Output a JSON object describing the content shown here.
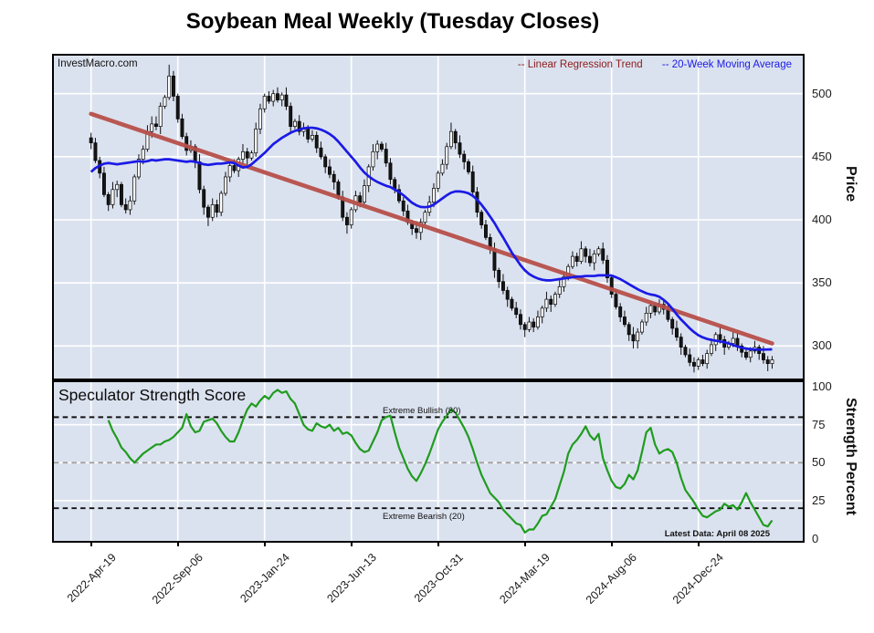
{
  "title": "Soybean Meal Weekly (Tuesday Closes)",
  "watermark": "InvestMacro.com",
  "legend": {
    "regression": "-- Linear Regression Trend",
    "ma": "-- 20-Week Moving Average"
  },
  "price_panel": {
    "ylabel": "Price",
    "yticks": [
      500,
      450,
      400,
      350,
      300
    ]
  },
  "strength_panel": {
    "title": "Speculator Strength Score",
    "ylabel": "Strength Percent",
    "yticks": [
      100,
      75,
      50,
      25,
      0
    ],
    "bullish_label": "Extreme Bullish (80)",
    "bearish_label": "Extreme Bearish (20)",
    "latest_label": "Latest Data: April 08 2025"
  },
  "x_axis": {
    "tick_labels": [
      "2022-Apr-19",
      "2022-Sep-06",
      "2023-Jan-24",
      "2023-Jun-13",
      "2023-Oct-31",
      "2024-Mar-19",
      "2024-Aug-06",
      "2024-Dec-24"
    ],
    "tick_weeks": [
      0,
      20,
      40,
      60,
      80,
      100,
      120,
      140
    ]
  },
  "colors": {
    "plot_bg": "#dbe2ef",
    "grid": "#ffffff",
    "candle_up": "#ffffff",
    "candle_down": "#161616",
    "candle_outline": "#000000",
    "regression": "#b8504a",
    "ma": "#1a1ae6",
    "strength": "#1f9c1f",
    "legend_regression": "#8b1a1a",
    "legend_ma": "#1a1ae6",
    "dash_dark": "#111111",
    "dash_mid": "#999999",
    "text": "#1a1a1a"
  },
  "chart_data": [
    {
      "type": "candlestick",
      "title": "Soybean Meal Weekly (Tuesday Closes)",
      "x_unit": "weeks since 2022-Apr-19",
      "tick_weeks": [
        0,
        20,
        40,
        60,
        80,
        100,
        120,
        140
      ],
      "tick_labels": [
        "2022-Apr-19",
        "2022-Sep-06",
        "2023-Jan-24",
        "2023-Jun-13",
        "2023-Oct-31",
        "2024-Mar-19",
        "2024-Aug-06",
        "2024-Dec-24"
      ],
      "ylabel": "Price",
      "ylim": [
        274,
        531
      ],
      "yticks": [
        500,
        450,
        400,
        350,
        300
      ],
      "grid": true,
      "open_first": 465,
      "close": [
        461,
        447,
        437,
        420,
        412,
        424,
        428,
        412,
        408,
        415,
        434,
        448,
        456,
        470,
        476,
        474,
        490,
        497,
        514,
        498,
        480,
        466,
        455,
        458,
        446,
        424,
        410,
        402,
        412,
        406,
        421,
        434,
        443,
        439,
        448,
        454,
        449,
        453,
        472,
        488,
        498,
        494,
        500,
        495,
        499,
        490,
        474,
        478,
        470,
        473,
        464,
        467,
        457,
        450,
        442,
        436,
        430,
        418,
        402,
        396,
        408,
        419,
        414,
        427,
        442,
        454,
        460,
        456,
        445,
        432,
        424,
        415,
        407,
        398,
        393,
        390,
        398,
        406,
        414,
        425,
        437,
        444,
        458,
        470,
        461,
        452,
        446,
        438,
        422,
        406,
        396,
        386,
        377,
        360,
        351,
        344,
        337,
        330,
        325,
        317,
        313,
        319,
        315,
        323,
        330,
        337,
        333,
        341,
        347,
        355,
        363,
        371,
        367,
        377,
        371,
        366,
        373,
        377,
        368,
        354,
        341,
        331,
        323,
        317,
        309,
        304,
        311,
        319,
        326,
        332,
        327,
        333,
        329,
        321,
        314,
        307,
        299,
        293,
        287,
        284,
        289,
        286,
        294,
        301,
        309,
        305,
        299,
        302,
        306,
        300,
        295,
        291,
        296,
        299,
        294,
        289,
        286,
        289
      ],
      "high": [
        469,
        465,
        450,
        442,
        422,
        430,
        431,
        430,
        417,
        419,
        436,
        452,
        459,
        475,
        482,
        482,
        493,
        499,
        523,
        518,
        500,
        484,
        469,
        463,
        460,
        452,
        427,
        412,
        417,
        416,
        423,
        438,
        446,
        448,
        450,
        460,
        457,
        455,
        477,
        492,
        500,
        502,
        503,
        505,
        501,
        505,
        493,
        480,
        483,
        477,
        475,
        471,
        470,
        462,
        452,
        448,
        439,
        432,
        423,
        406,
        410,
        423,
        422,
        432,
        444,
        460,
        463,
        462,
        461,
        449,
        434,
        428,
        418,
        412,
        400,
        399,
        401,
        408,
        419,
        429,
        439,
        448,
        461,
        477,
        472,
        467,
        455,
        448,
        443,
        426,
        408,
        400,
        389,
        382,
        362,
        357,
        347,
        339,
        335,
        329,
        319,
        323,
        322,
        328,
        332,
        343,
        340,
        343,
        352,
        359,
        365,
        375,
        374,
        383,
        379,
        377,
        376,
        379,
        382,
        372,
        356,
        345,
        334,
        328,
        319,
        315,
        314,
        321,
        331,
        336,
        334,
        337,
        336,
        334,
        323,
        320,
        310,
        301,
        298,
        291,
        291,
        293,
        297,
        306,
        311,
        315,
        308,
        304,
        311,
        310,
        302,
        299,
        299,
        304,
        301,
        300,
        292,
        292
      ],
      "low": [
        456,
        445,
        433,
        418,
        407,
        409,
        418,
        410,
        405,
        404,
        412,
        432,
        444,
        454,
        465,
        471,
        468,
        488,
        495,
        494,
        477,
        464,
        451,
        453,
        441,
        421,
        404,
        395,
        399,
        402,
        403,
        419,
        430,
        437,
        434,
        445,
        443,
        447,
        450,
        468,
        485,
        492,
        490,
        493,
        490,
        487,
        468,
        472,
        467,
        466,
        461,
        462,
        453,
        448,
        437,
        433,
        424,
        416,
        399,
        389,
        393,
        406,
        410,
        412,
        422,
        439,
        448,
        454,
        442,
        428,
        421,
        413,
        403,
        396,
        388,
        385,
        384,
        396,
        403,
        410,
        422,
        435,
        440,
        456,
        456,
        449,
        440,
        436,
        419,
        402,
        393,
        384,
        373,
        354,
        346,
        341,
        331,
        328,
        322,
        313,
        307,
        311,
        311,
        313,
        318,
        327,
        327,
        331,
        338,
        343,
        352,
        361,
        363,
        365,
        366,
        363,
        360,
        371,
        365,
        350,
        338,
        329,
        319,
        315,
        304,
        298,
        298,
        309,
        316,
        322,
        324,
        325,
        325,
        319,
        309,
        304,
        293,
        291,
        284,
        279,
        281,
        284,
        282,
        292,
        296,
        302,
        293,
        297,
        299,
        296,
        291,
        289,
        287,
        294,
        289,
        286,
        280,
        282
      ],
      "series": [
        {
          "name": "20-Week Moving Average",
          "color": "#1a1ae6",
          "values": [
            438,
            441,
            443,
            444.5,
            445,
            444.5,
            444,
            444.5,
            445,
            445.5,
            446,
            446.5,
            446,
            446.5,
            447.5,
            447,
            447.5,
            448,
            448,
            447.5,
            447,
            446.5,
            446,
            446.5,
            446,
            445,
            444,
            443.5,
            444,
            444.5,
            444.5,
            445,
            445.5,
            445,
            443,
            441.5,
            442,
            444,
            447,
            450,
            453,
            456.5,
            460,
            462.5,
            465,
            467,
            469,
            470.5,
            471.5,
            472.5,
            473,
            473,
            472.5,
            471.5,
            470,
            468,
            465.5,
            462,
            458,
            454,
            450,
            446,
            441.5,
            437.5,
            434.5,
            432,
            430,
            428.5,
            427,
            426,
            424,
            422,
            419.5,
            416.5,
            413.5,
            411.5,
            410.2,
            410,
            410.5,
            412,
            414.5,
            417,
            419.5,
            421.5,
            422.5,
            422.5,
            422,
            421,
            419,
            416,
            412,
            407.5,
            402.5,
            397.5,
            391.5,
            386,
            380,
            374,
            369,
            364,
            360,
            357,
            355,
            353.5,
            352.5,
            352,
            352,
            352.5,
            353,
            353.5,
            354,
            354.5,
            355,
            355,
            355.5,
            355.5,
            355.5,
            356,
            356,
            356,
            355.8,
            354.5,
            353,
            351,
            349,
            347,
            345,
            343.3,
            341.8,
            340.8,
            340.2,
            339,
            336.5,
            333.5,
            329.5,
            325,
            321,
            317.5,
            314,
            311,
            308.5,
            306.8,
            305.6,
            304.8,
            304.2,
            303.6,
            303,
            302,
            300.8,
            299.6,
            298.6,
            297.9,
            297.5,
            297.2,
            297.1,
            297.1,
            297.2,
            297.3
          ]
        },
        {
          "name": "Linear Regression Trend",
          "color": "#b8504a",
          "start": 484,
          "end": 302
        }
      ]
    },
    {
      "type": "line",
      "name": "Speculator Strength Score",
      "ylabel": "Strength Percent",
      "ylim": [
        0,
        103
      ],
      "yticks": [
        100,
        75,
        50,
        25,
        0
      ],
      "grid": true,
      "reference_lines": [
        {
          "value": 80,
          "label": "Extreme Bullish (80)",
          "style": "dashed-dark"
        },
        {
          "value": 50,
          "label": "",
          "style": "dashed-gray"
        },
        {
          "value": 20,
          "label": "Extreme Bearish (20)",
          "style": "dashed-dark"
        }
      ],
      "start_week": 4,
      "values": [
        78,
        71,
        66,
        60,
        57,
        53,
        50,
        53,
        56,
        58,
        60,
        62,
        62,
        64,
        65,
        67,
        70,
        73,
        82,
        74,
        70,
        71,
        77,
        78,
        79,
        76,
        71,
        67,
        64,
        64,
        70,
        78,
        85,
        89,
        87,
        91,
        94,
        92,
        96,
        98,
        96,
        97,
        92,
        89,
        82,
        75,
        72,
        71,
        76,
        74,
        73,
        75,
        71,
        73,
        69,
        70,
        68,
        63,
        59,
        57,
        58,
        64,
        70,
        78,
        80,
        81,
        70,
        60,
        53,
        46,
        41,
        38,
        43,
        49,
        56,
        64,
        72,
        77,
        81,
        85,
        83,
        78,
        73,
        67,
        59,
        50,
        42,
        36,
        30,
        27,
        24,
        19,
        16,
        13,
        10,
        9,
        4,
        6,
        6,
        10,
        15,
        16,
        21,
        26,
        35,
        44,
        56,
        62,
        65,
        69,
        74,
        68,
        65,
        69,
        53,
        45,
        38,
        34,
        33,
        36,
        42,
        39,
        45,
        57,
        70,
        73,
        62,
        56,
        58,
        59,
        57,
        50,
        40,
        32,
        28,
        24,
        19,
        15,
        14,
        16,
        18,
        19,
        23,
        21,
        22,
        19,
        24,
        30,
        24,
        19,
        14,
        9,
        8,
        12
      ]
    }
  ]
}
